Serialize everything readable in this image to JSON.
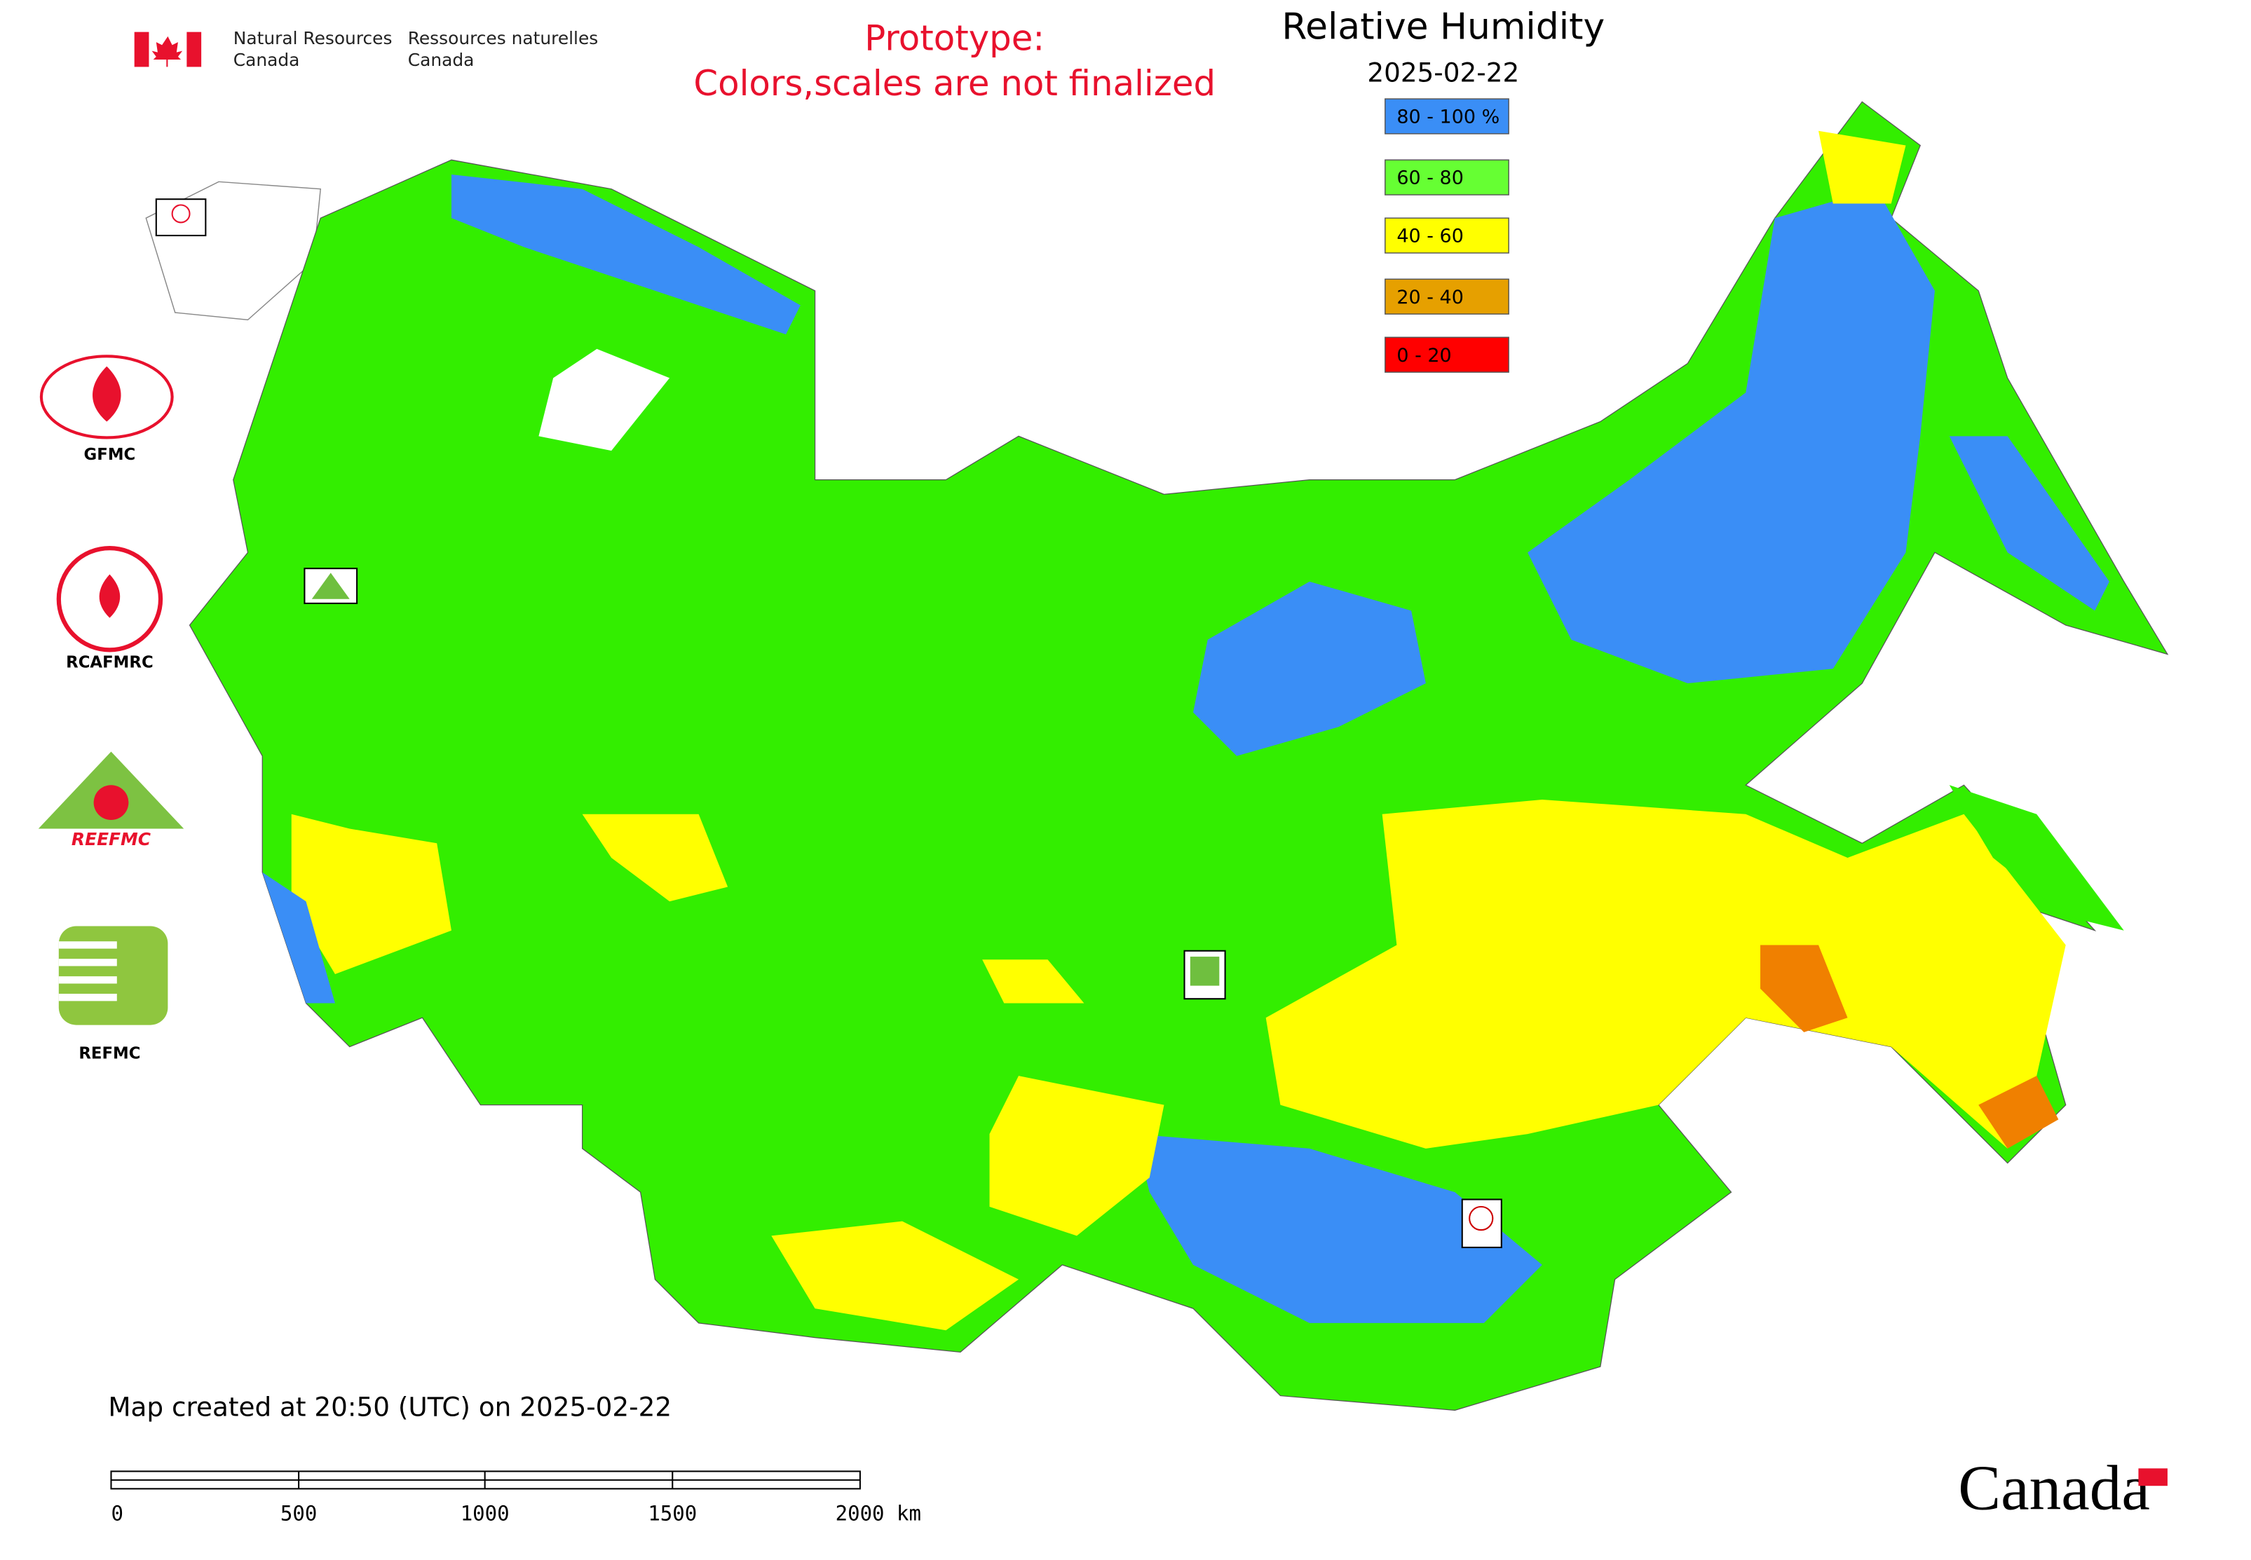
{
  "agency": {
    "en_1": "Natural Resources",
    "en_2": "Canada",
    "fr_1": "Ressources naturelles",
    "fr_2": "Canada"
  },
  "notice": {
    "line_1": "Prototype:",
    "line_2": "Colors,scales are not finalized"
  },
  "title": "Relative Humidity",
  "date": "2025-02-22",
  "legend": [
    {
      "label": "80 - 100 %",
      "color": "#3a8ef6"
    },
    {
      "label": "60 - 80",
      "color": "#66ff33"
    },
    {
      "label": "40 - 60",
      "color": "#ffff00"
    },
    {
      "label": "20 - 40",
      "color": "#e6a000"
    },
    {
      "label": "0 - 20",
      "color": "#ff0000"
    }
  ],
  "logos": [
    "GFMC",
    "RCAFMRC",
    "REEFMC",
    "REFMC"
  ],
  "footer": {
    "created": "Map created at 20:50 (UTC) on 2025-02-22",
    "scale_labels": [
      "0",
      "500",
      "1000",
      "1500",
      "2000 km"
    ],
    "wordmark": "Canada"
  }
}
